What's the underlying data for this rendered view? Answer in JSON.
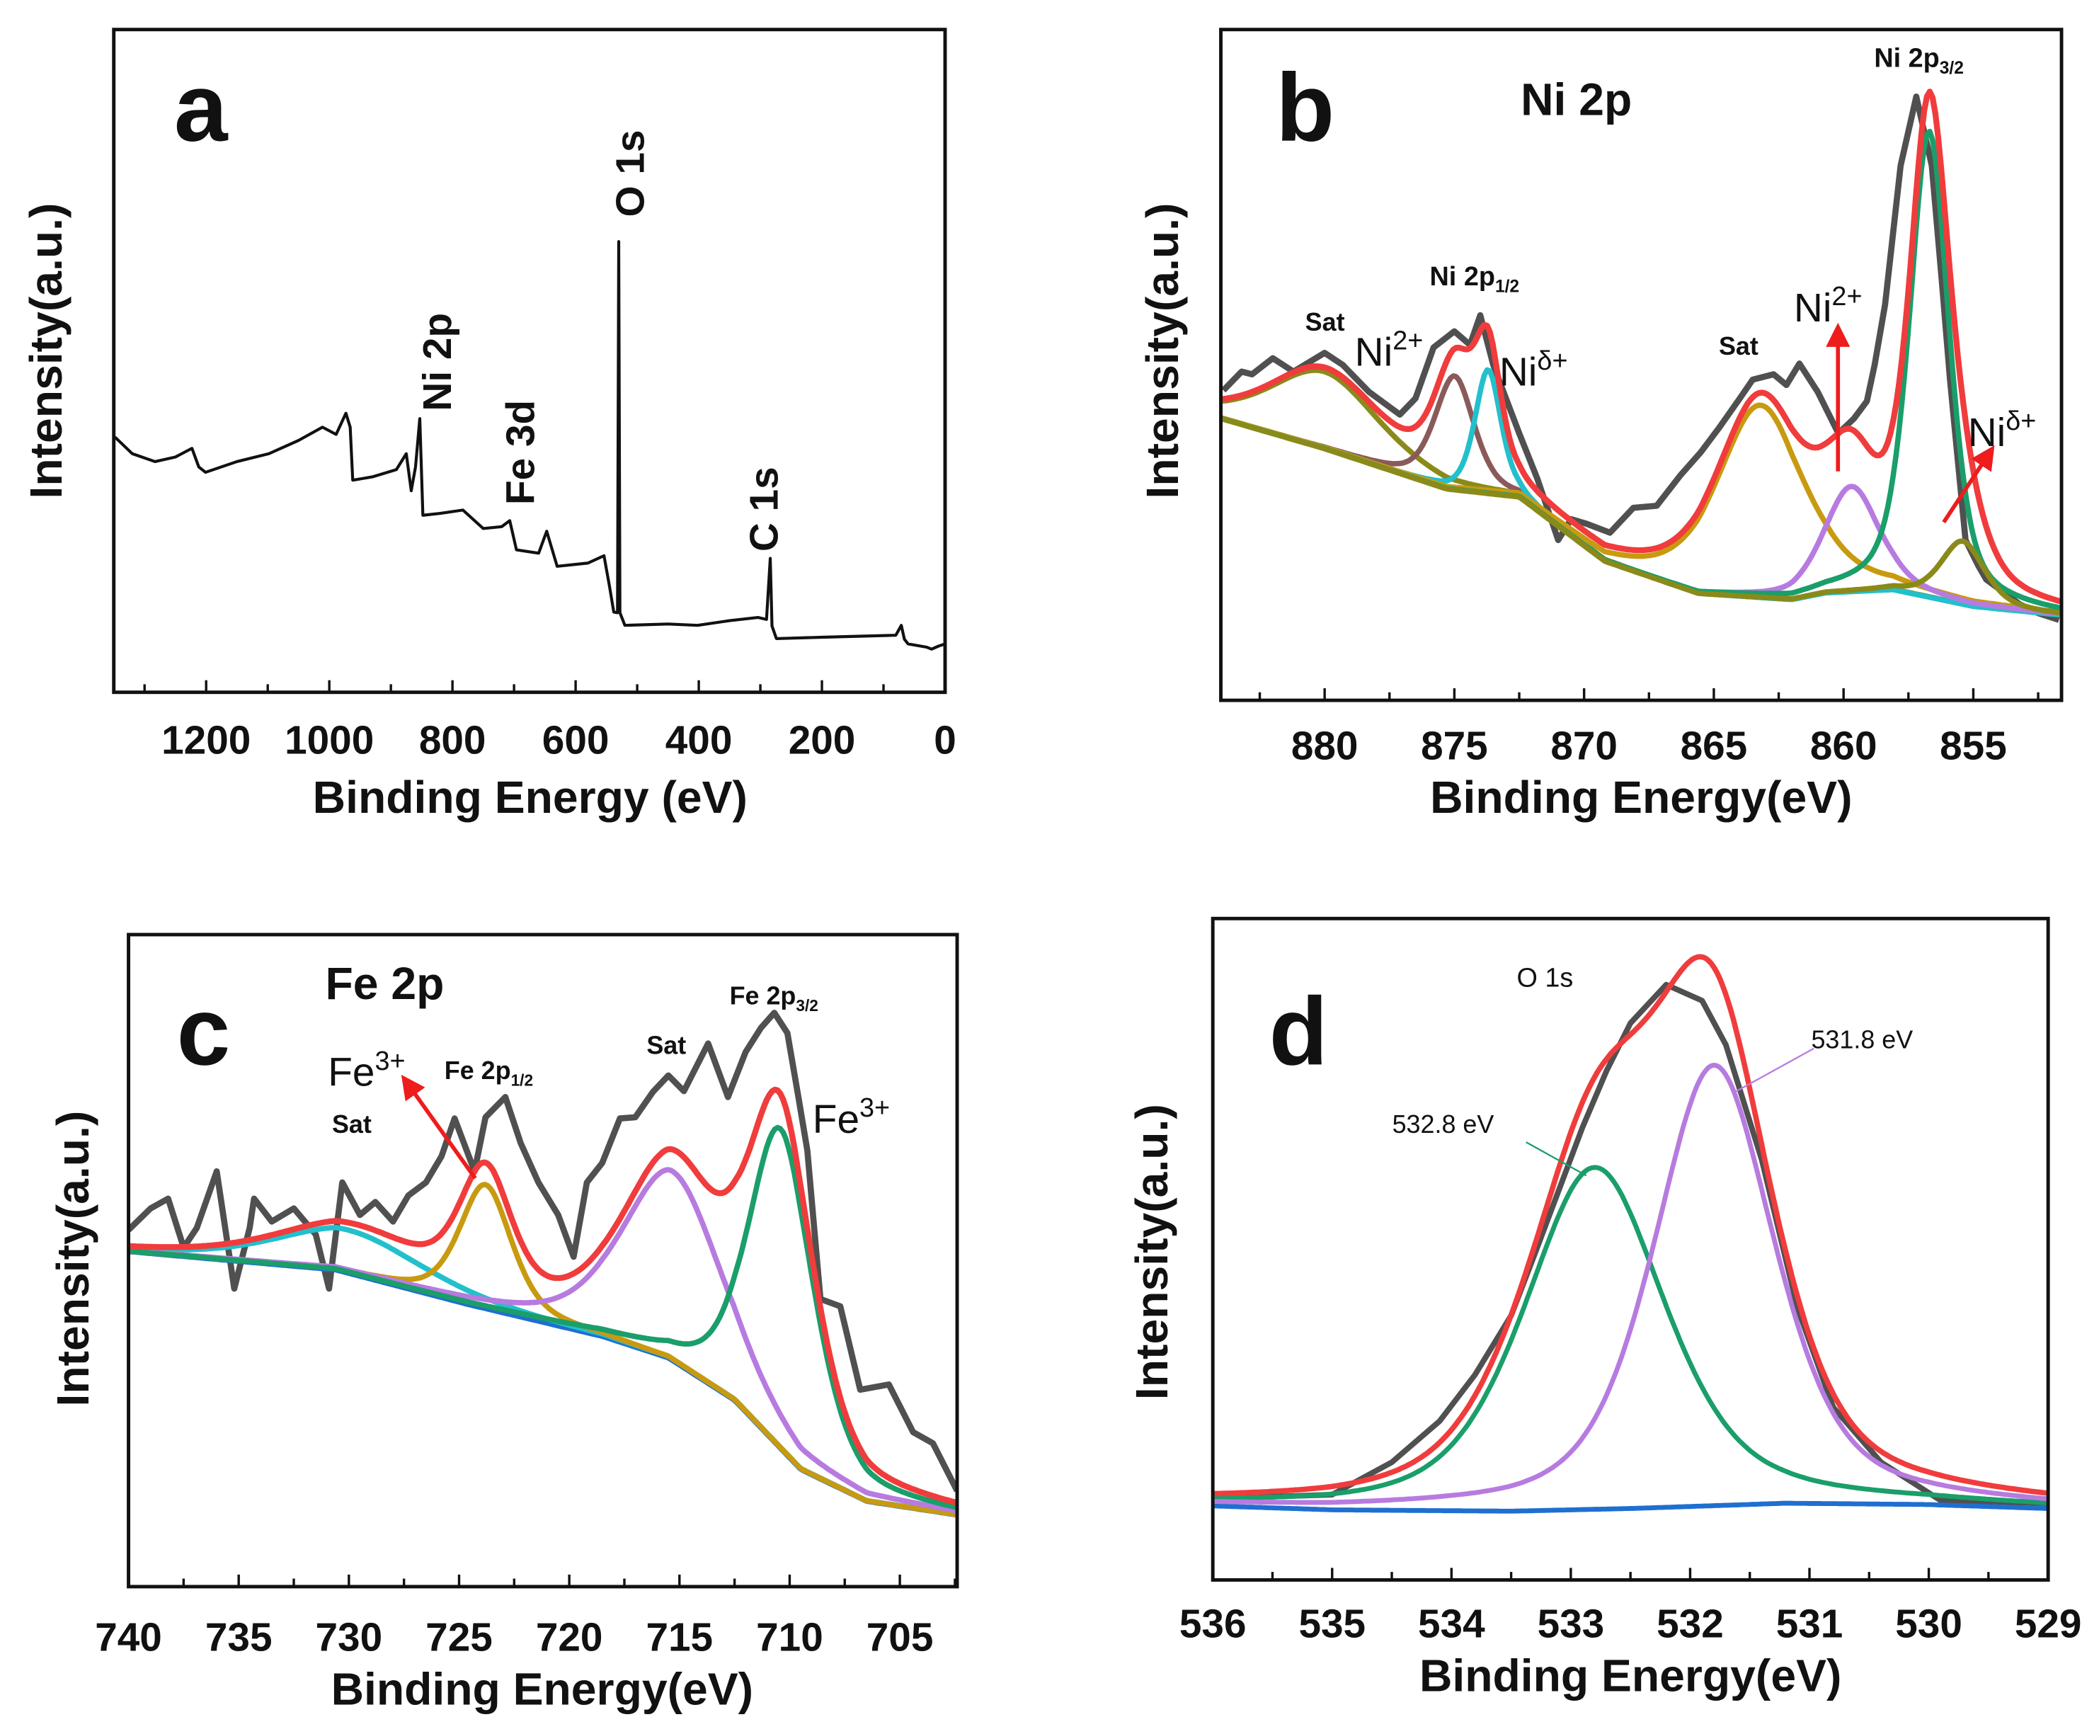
{
  "chart_data": [
    {
      "panel": "a",
      "type": "line",
      "panel_label": "a",
      "xlabel": "Binding Energy (eV)",
      "ylabel": "Intensity(a.u.)",
      "xlim": [
        1350,
        0
      ],
      "ylim": [
        0,
        100
      ],
      "xticks": [
        1200,
        1000,
        800,
        600,
        400,
        200,
        0
      ],
      "minor_step": 100,
      "grid": false,
      "series": [
        {
          "color": "#111111",
          "points": [
            [
              1348,
              38.5
            ],
            [
              1320,
              36
            ],
            [
              1283,
              34.8
            ],
            [
              1250,
              35.5
            ],
            [
              1223,
              36.8
            ],
            [
              1212,
              34
            ],
            [
              1201,
              33.2
            ],
            [
              1150,
              34.8
            ],
            [
              1098,
              36
            ],
            [
              1050,
              38
            ],
            [
              1011,
              40
            ],
            [
              989,
              38.9
            ],
            [
              973,
              42.1
            ],
            [
              966,
              40
            ],
            [
              962,
              32
            ],
            [
              930,
              32.5
            ],
            [
              891,
              33.6
            ],
            [
              875,
              36
            ],
            [
              867,
              30.4
            ],
            [
              860,
              34
            ],
            [
              853,
              41.3
            ],
            [
              848,
              26.7
            ],
            [
              820,
              27
            ],
            [
              783,
              27.5
            ],
            [
              750,
              24.7
            ],
            [
              720,
              25
            ],
            [
              707,
              25.9
            ],
            [
              696,
              21.5
            ],
            [
              660,
              21
            ],
            [
              647,
              24.3
            ],
            [
              630,
              19
            ],
            [
              580,
              19.5
            ],
            [
              554,
              20.6
            ],
            [
              545,
              16
            ],
            [
              538,
              12.1
            ],
            [
              532,
              12
            ],
            [
              530,
              68
            ],
            [
              528,
              12
            ],
            [
              520,
              10.1
            ],
            [
              450,
              10.3
            ],
            [
              402,
              10.1
            ],
            [
              350,
              10.8
            ],
            [
              304,
              11.3
            ],
            [
              290,
              11
            ],
            [
              284,
              20.2
            ],
            [
              281,
              10
            ],
            [
              274,
              8.1
            ],
            [
              200,
              8.3
            ],
            [
              120,
              8.5
            ],
            [
              80,
              8.6
            ],
            [
              71,
              10.1
            ],
            [
              66,
              8
            ],
            [
              60,
              7.3
            ],
            [
              30,
              6.8
            ],
            [
              22,
              6.5
            ],
            [
              10,
              7
            ],
            [
              0,
              7.3
            ]
          ]
        }
      ],
      "annotations": [
        "Ni 2p",
        "Fe 3d",
        "O 1s",
        "C 1s"
      ]
    },
    {
      "panel": "b",
      "type": "line",
      "panel_label": "b",
      "title": "Ni 2p",
      "xlabel": "Binding Energy(eV)",
      "ylabel": "Intensity(a.u.)",
      "xlim": [
        884,
        851.6
      ],
      "ylim": [
        0,
        100
      ],
      "xticks": [
        880,
        875,
        870,
        865,
        860,
        855
      ],
      "minor_step": 2.5,
      "grid": false,
      "raw": {
        "color": "#505050",
        "points": [
          [
            883.9,
            46.2
          ],
          [
            883.2,
            49
          ],
          [
            882.8,
            48.6
          ],
          [
            882,
            51
          ],
          [
            881.2,
            49
          ],
          [
            880,
            51.8
          ],
          [
            879.3,
            50
          ],
          [
            878.3,
            46
          ],
          [
            877.1,
            42.6
          ],
          [
            876.5,
            45
          ],
          [
            875.8,
            52.6
          ],
          [
            875,
            55
          ],
          [
            874.4,
            53
          ],
          [
            874,
            57.4
          ],
          [
            873.5,
            50
          ],
          [
            872.5,
            39.8
          ],
          [
            871.8,
            33
          ],
          [
            871,
            23.9
          ],
          [
            870.5,
            27
          ],
          [
            869.9,
            26.3
          ],
          [
            869,
            25
          ],
          [
            868.1,
            28.7
          ],
          [
            867.2,
            29
          ],
          [
            866.3,
            33.5
          ],
          [
            865.5,
            37
          ],
          [
            864.8,
            40.6
          ],
          [
            864,
            45
          ],
          [
            863.5,
            47.8
          ],
          [
            862.7,
            48.6
          ],
          [
            862.2,
            47
          ],
          [
            861.7,
            50.2
          ],
          [
            861,
            46
          ],
          [
            860.2,
            39.8
          ],
          [
            859.6,
            42
          ],
          [
            859.1,
            44.6
          ],
          [
            858.8,
            50
          ],
          [
            858.4,
            59
          ],
          [
            857.8,
            79.7
          ],
          [
            857.2,
            90
          ],
          [
            856.6,
            79.7
          ],
          [
            856.2,
            62
          ],
          [
            855.9,
            47.8
          ],
          [
            855.3,
            23.9
          ],
          [
            854.8,
            20
          ],
          [
            854.5,
            18
          ],
          [
            853.8,
            16
          ],
          [
            853.2,
            14.3
          ],
          [
            852.5,
            13
          ],
          [
            851.7,
            12
          ]
        ]
      },
      "background": [
        [
          884,
          42
        ],
        [
          880,
          37.5
        ],
        [
          875.3,
          31.5
        ],
        [
          872.5,
          30.3
        ],
        [
          869.2,
          20.7
        ],
        [
          865.6,
          15.9
        ],
        [
          862,
          15
        ],
        [
          860.7,
          16
        ],
        [
          858.1,
          16.5
        ],
        [
          855,
          14
        ],
        [
          851.6,
          12.7
        ]
      ],
      "background_color": "#22c0cc",
      "components": [
        {
          "label": "Sat",
          "center": 880,
          "height": 11.5,
          "fwhm": 5,
          "color": "#8a8a1a"
        },
        {
          "label": "Ni2+",
          "center": 875,
          "height": 17,
          "fwhm": 1.8,
          "color": "#8a5a5a"
        },
        {
          "label": "Niδ+",
          "center": 873.7,
          "height": 18.5,
          "fwhm": 1.2,
          "color": "#22c0cc"
        },
        {
          "label": "Sat",
          "center": 863.2,
          "height": 28.7,
          "fwhm": 4,
          "color": "#c89a10"
        },
        {
          "label": "Ni2+",
          "center": 859.7,
          "height": 15.7,
          "fwhm": 2.5,
          "color": "#b77be0"
        },
        {
          "label": "Ni 2p3/2",
          "center": 856.7,
          "height": 69.5,
          "fwhm": 1.8,
          "color": "#1a9e6a"
        },
        {
          "label": "Niδ+",
          "center": 855.4,
          "height": 9.4,
          "fwhm": 2,
          "color": "#8a8a1a"
        }
      ],
      "envelope_color": "#f03c3c",
      "annotations": {
        "p12": {
          "main": "Ni 2p",
          "sub": "1/2"
        },
        "p32": {
          "main": "Ni 2p",
          "sub": "3/2"
        },
        "sat1": "Sat",
        "sat2": "Sat",
        "ni2_1": {
          "main": "Ni",
          "sup": "2+"
        },
        "nid_1": {
          "main": "Ni",
          "sup": "δ+"
        },
        "ni2_2": {
          "main": "Ni",
          "sup": "2+"
        },
        "nid_2": {
          "main": "Ni",
          "sup": "δ+"
        }
      }
    },
    {
      "panel": "c",
      "type": "line",
      "panel_label": "c",
      "title": "Fe 2p",
      "xlabel": "Binding Energy(eV)",
      "ylabel": "Intensity(a.u.)",
      "xlim": [
        740,
        702.4
      ],
      "ylim": [
        0,
        100
      ],
      "xticks": [
        740,
        735,
        730,
        725,
        720,
        715,
        710,
        705
      ],
      "minor_step": 2.5,
      "grid": false,
      "raw": {
        "color": "#505050",
        "points": [
          [
            740,
            54.7
          ],
          [
            739,
            58
          ],
          [
            738.2,
            59.5
          ],
          [
            737.5,
            52
          ],
          [
            736.9,
            55
          ],
          [
            736,
            63.7
          ],
          [
            735.2,
            45.7
          ],
          [
            734.5,
            55
          ],
          [
            734.3,
            59.5
          ],
          [
            733.5,
            56
          ],
          [
            732.5,
            58
          ],
          [
            731.5,
            54
          ],
          [
            730.9,
            45.7
          ],
          [
            730.3,
            62
          ],
          [
            729.5,
            57
          ],
          [
            728.8,
            59
          ],
          [
            728,
            56
          ],
          [
            727.3,
            60
          ],
          [
            726.5,
            62
          ],
          [
            725.8,
            66
          ],
          [
            725.2,
            71.8
          ],
          [
            724.3,
            63.7
          ],
          [
            723.8,
            72
          ],
          [
            722.9,
            75.1
          ],
          [
            722.2,
            68
          ],
          [
            721.4,
            62
          ],
          [
            720.5,
            57
          ],
          [
            719.8,
            50.6
          ],
          [
            719.2,
            62
          ],
          [
            718.5,
            65
          ],
          [
            717.7,
            71.8
          ],
          [
            717,
            72
          ],
          [
            716.2,
            75.9
          ],
          [
            715.5,
            78.4
          ],
          [
            714.8,
            76
          ],
          [
            713.7,
            83.3
          ],
          [
            712.8,
            75.1
          ],
          [
            712,
            82
          ],
          [
            711.3,
            85.7
          ],
          [
            710.7,
            88
          ],
          [
            710.1,
            84.9
          ],
          [
            709.6,
            75
          ],
          [
            709.2,
            66.9
          ],
          [
            708.6,
            44.1
          ],
          [
            707.7,
            43
          ],
          [
            706.8,
            30.2
          ],
          [
            705.5,
            31
          ],
          [
            704.4,
            23.7
          ],
          [
            703.5,
            22
          ],
          [
            702.4,
            14.7
          ]
        ]
      },
      "background": [
        [
          740,
          51.4
        ],
        [
          730.6,
          48.6
        ],
        [
          724.6,
          43.3
        ],
        [
          718.5,
          38.4
        ],
        [
          715.5,
          35.1
        ],
        [
          712.5,
          28.6
        ],
        [
          709.5,
          18
        ],
        [
          706.5,
          13.1
        ],
        [
          702.4,
          11
        ]
      ],
      "background_color": "#1f6fd0",
      "components": [
        {
          "label": "Sat",
          "center": 730,
          "height": 6.6,
          "fwhm": 8,
          "color": "#22c0cc"
        },
        {
          "label": "Fe3+ Fe 2p1/2",
          "center": 723.8,
          "height": 19,
          "fwhm": 2.8,
          "color": "#c89a10"
        },
        {
          "label": "Sat",
          "center": 715.3,
          "height": 29,
          "fwhm": 5.5,
          "color": "#b77be0"
        },
        {
          "label": "Fe3+ Fe 2p3/2",
          "center": 710.4,
          "height": 49,
          "fwhm": 3.5,
          "color": "#1a9e6a"
        }
      ],
      "envelope_color": "#f03c3c",
      "annotations": {
        "p12": {
          "main": "Fe 2p",
          "sub": "1/2"
        },
        "p32": {
          "main": "Fe 2p",
          "sub": "3/2"
        },
        "sat1": "Sat",
        "sat2": "Sat",
        "fe_1": {
          "main": "Fe",
          "sup": "3+"
        },
        "fe_2": {
          "main": "Fe",
          "sup": "3+"
        }
      }
    },
    {
      "panel": "d",
      "type": "line",
      "panel_label": "d",
      "title": "O 1s",
      "xlabel": "Binding Energy(eV)",
      "ylabel": "Intensity(a.u.)",
      "xlim": [
        536,
        529
      ],
      "ylim": [
        0,
        100
      ],
      "xticks": [
        536,
        535,
        534,
        533,
        532,
        531,
        530,
        529
      ],
      "minor_step": 0.5,
      "grid": false,
      "raw": {
        "color": "#505050",
        "points": [
          [
            536,
            12.4
          ],
          [
            535.5,
            12.6
          ],
          [
            535,
            12.9
          ],
          [
            534.5,
            17.8
          ],
          [
            534.1,
            24
          ],
          [
            533.8,
            31.1
          ],
          [
            533.5,
            40
          ],
          [
            533.3,
            49.4
          ],
          [
            532.9,
            68.5
          ],
          [
            532.7,
            77
          ],
          [
            532.5,
            84.2
          ],
          [
            532.2,
            90
          ],
          [
            531.9,
            87.6
          ],
          [
            531.7,
            80.9
          ],
          [
            531.4,
            63.5
          ],
          [
            531.1,
            41.1
          ],
          [
            530.8,
            26.1
          ],
          [
            530.4,
            17.8
          ],
          [
            529.9,
            12
          ],
          [
            529,
            11.6
          ]
        ]
      },
      "background": [
        [
          536,
          11.2
        ],
        [
          535,
          10.6
        ],
        [
          533.5,
          10.4
        ],
        [
          532.5,
          10.8
        ],
        [
          531.2,
          11.6
        ],
        [
          530,
          11.4
        ],
        [
          529,
          10.8
        ]
      ],
      "background_color": "#1f6fd0",
      "components": [
        {
          "label": "532.8 eV",
          "center": 532.8,
          "height": 51.7,
          "fwhm": 1.4,
          "color": "#1a9e6a"
        },
        {
          "label": "531.8 eV",
          "center": 531.8,
          "height": 66.6,
          "fwhm": 1.2,
          "color": "#b77be0"
        }
      ],
      "envelope_color": "#f03c3c",
      "annotations": {
        "l1": "532.8 eV",
        "l2": "531.8 eV"
      }
    }
  ]
}
